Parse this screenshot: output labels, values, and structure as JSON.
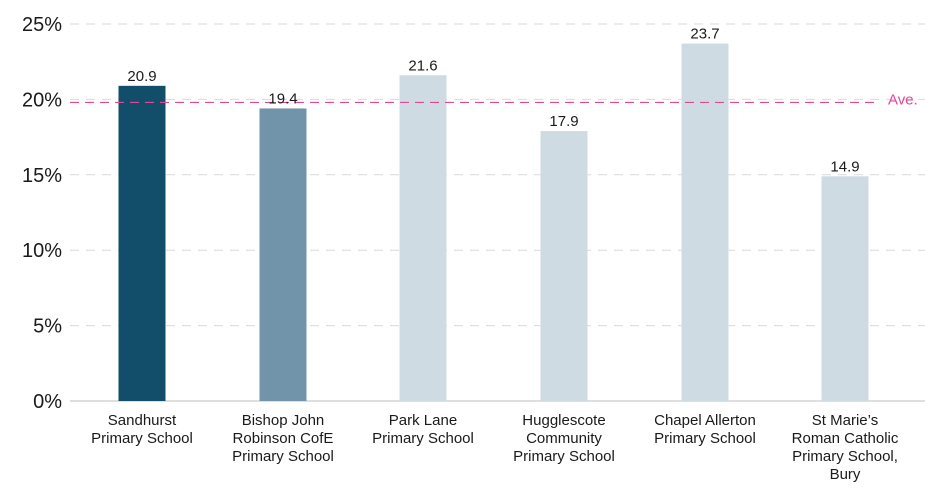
{
  "chart_data": {
    "type": "bar",
    "categories": [
      [
        "Sandhurst",
        "Primary School"
      ],
      [
        "Bishop John",
        "Robinson CofE",
        "Primary School"
      ],
      [
        "Park Lane",
        "Primary School"
      ],
      [
        "Hugglescote",
        "Community",
        "Primary School"
      ],
      [
        "Chapel Allerton",
        "Primary School"
      ],
      [
        "St Marie’s",
        "Roman Catholic",
        "Primary School,",
        "Bury"
      ]
    ],
    "values": [
      20.9,
      19.4,
      21.6,
      17.9,
      23.7,
      14.9
    ],
    "value_labels": [
      "20.9",
      "19.4",
      "21.6",
      "17.9",
      "23.7",
      "14.9"
    ],
    "bar_colors": [
      "#124e69",
      "#7194ab",
      "#cfdbe3",
      "#cfdbe3",
      "#cfdbe3",
      "#cfdbe3"
    ],
    "ylim": [
      0,
      25
    ],
    "yticks": [
      0,
      5,
      10,
      15,
      20,
      25
    ],
    "ytick_labels": [
      "0%",
      "5%",
      "10%",
      "15%",
      "20%",
      "25%"
    ],
    "grid": true,
    "grid_color": "#d9d9d9",
    "average": {
      "value": 19.8,
      "label": "Ave.",
      "color": "#e0489a"
    },
    "title": "",
    "xlabel": "",
    "ylabel": ""
  }
}
